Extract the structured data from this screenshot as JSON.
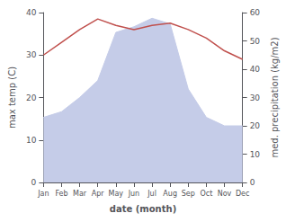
{
  "chart_data": {
    "type": "line",
    "categories": [
      "Jan",
      "Feb",
      "Mar",
      "Apr",
      "May",
      "Jun",
      "Jul",
      "Aug",
      "Sep",
      "Oct",
      "Nov",
      "Dec"
    ],
    "xlabel": "date (month)",
    "ylabel": "max temp (C)",
    "y2label": "med. precipitation (kg/m2)",
    "ylim": [
      0,
      40
    ],
    "yticks": [
      0,
      10,
      20,
      30,
      40
    ],
    "y2lim": [
      0,
      60
    ],
    "y2ticks": [
      0,
      10,
      20,
      30,
      40,
      50,
      60
    ],
    "grid": false,
    "series": [
      {
        "type": "area",
        "color": "#c5cce8",
        "axis": "y2",
        "values": [
          23,
          25,
          30,
          36,
          53,
          55,
          58,
          56,
          33,
          23,
          20,
          20
        ]
      },
      {
        "type": "line",
        "color": "#c0504d",
        "values": [
          30,
          33,
          36,
          38.5,
          37,
          36,
          37,
          37.5,
          36,
          34,
          31,
          29
        ]
      }
    ]
  }
}
